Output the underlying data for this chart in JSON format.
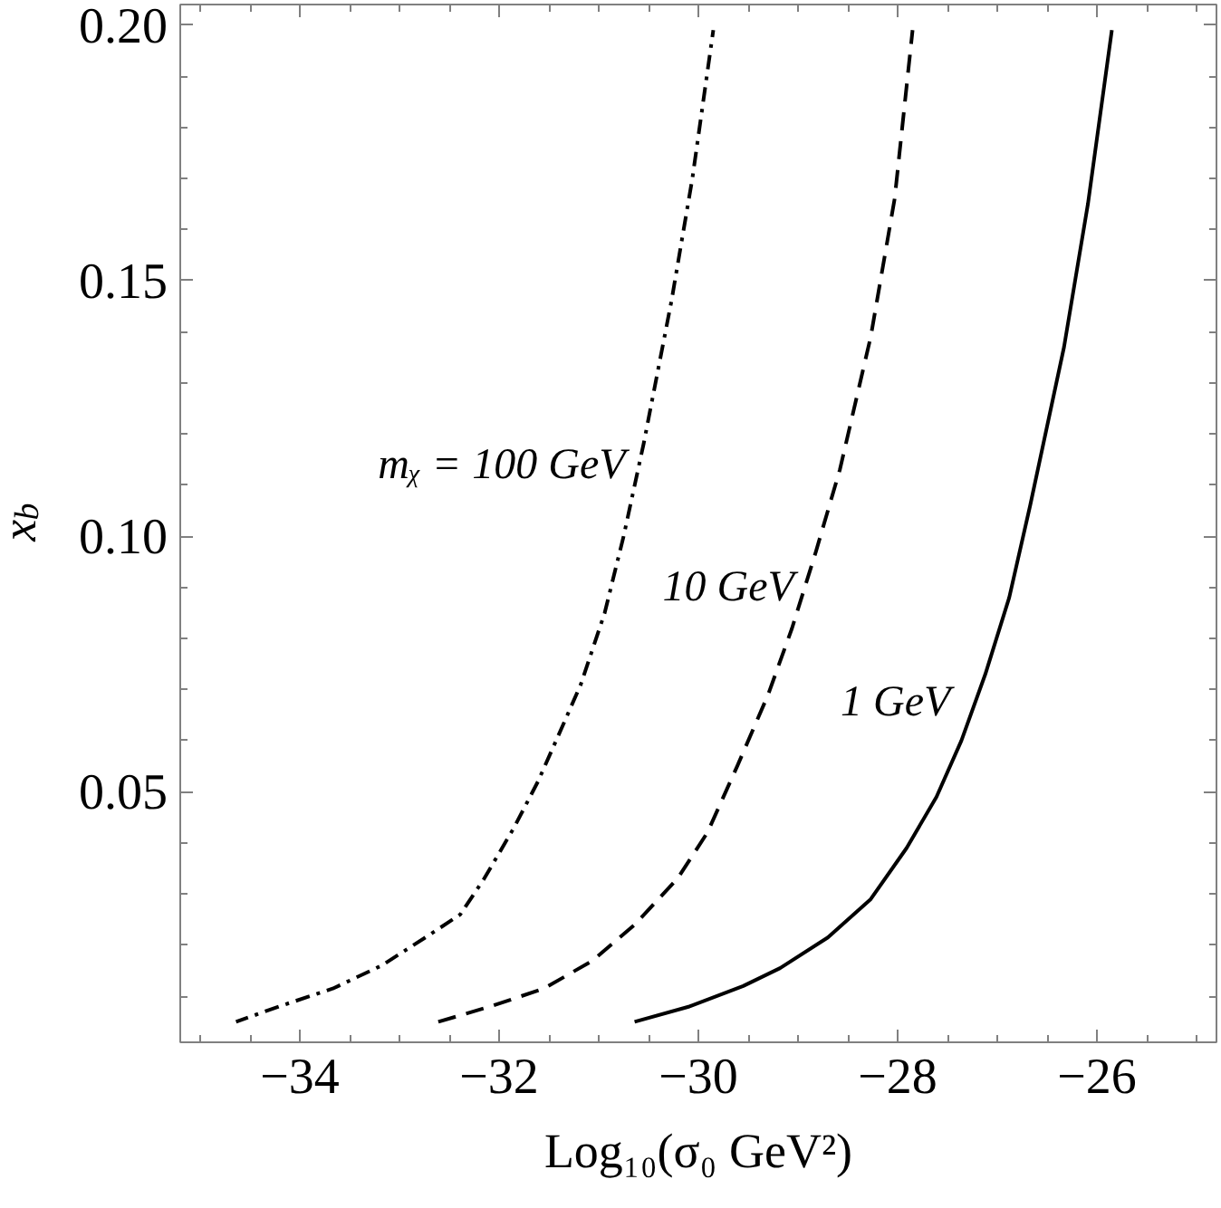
{
  "chart_data": {
    "type": "line",
    "xlabel": "Log₁₀(σ₀ GeV²)",
    "ylabel": "x$_{b}$",
    "xlim": [
      -35.2,
      -24.8
    ],
    "ylim": [
      0.001,
      0.204
    ],
    "xticks": [
      {
        "value": -35,
        "label": null
      },
      {
        "value": -34.5,
        "label": null
      },
      {
        "value": -34,
        "label": "−34"
      },
      {
        "value": -33.5,
        "label": null
      },
      {
        "value": -33,
        "label": null
      },
      {
        "value": -32.5,
        "label": null
      },
      {
        "value": -32,
        "label": "−32"
      },
      {
        "value": -31.5,
        "label": null
      },
      {
        "value": -31,
        "label": null
      },
      {
        "value": -30.5,
        "label": null
      },
      {
        "value": -30,
        "label": "−30"
      },
      {
        "value": -29.5,
        "label": null
      },
      {
        "value": -29,
        "label": null
      },
      {
        "value": -28.5,
        "label": null
      },
      {
        "value": -28,
        "label": "−28"
      },
      {
        "value": -27.5,
        "label": null
      },
      {
        "value": -27,
        "label": null
      },
      {
        "value": -26.5,
        "label": null
      },
      {
        "value": -26,
        "label": "−26"
      },
      {
        "value": -25.5,
        "label": null
      },
      {
        "value": -25,
        "label": null
      }
    ],
    "yticks": [
      {
        "value": 0.01,
        "label": null
      },
      {
        "value": 0.02,
        "label": null
      },
      {
        "value": 0.03,
        "label": null
      },
      {
        "value": 0.04,
        "label": null
      },
      {
        "value": 0.05,
        "label": "0.05"
      },
      {
        "value": 0.06,
        "label": null
      },
      {
        "value": 0.07,
        "label": null
      },
      {
        "value": 0.08,
        "label": null
      },
      {
        "value": 0.09,
        "label": null
      },
      {
        "value": 0.1,
        "label": "0.10"
      },
      {
        "value": 0.11,
        "label": null
      },
      {
        "value": 0.12,
        "label": null
      },
      {
        "value": 0.13,
        "label": null
      },
      {
        "value": 0.14,
        "label": null
      },
      {
        "value": 0.15,
        "label": "0.15"
      },
      {
        "value": 0.16,
        "label": null
      },
      {
        "value": 0.17,
        "label": null
      },
      {
        "value": 0.18,
        "label": null
      },
      {
        "value": 0.19,
        "label": null
      },
      {
        "value": 0.2,
        "label": "0.20"
      }
    ],
    "grid": false,
    "series": [
      {
        "name": "mᵪ = 100 GeV",
        "color": "#000000",
        "line_style": "dashdot",
        "x": [
          -34.64,
          -34.21,
          -33.67,
          -33.18,
          -32.7,
          -32.39,
          -32.15,
          -31.85,
          -31.61,
          -31.36,
          -31.18,
          -30.94,
          -30.75,
          -30.55,
          -30.27,
          -30.06,
          -29.85
        ],
        "values": [
          0.005,
          0.008,
          0.0115,
          0.016,
          0.022,
          0.026,
          0.033,
          0.043,
          0.052,
          0.063,
          0.071,
          0.085,
          0.1,
          0.118,
          0.146,
          0.17,
          0.199
        ]
      },
      {
        "name": "10 GeV",
        "color": "#000000",
        "line_style": "dashed",
        "x": [
          -32.61,
          -32.09,
          -31.55,
          -31.06,
          -30.64,
          -30.21,
          -29.91,
          -29.61,
          -29.3,
          -29.06,
          -28.82,
          -28.58,
          -28.27,
          -28.03,
          -27.85
        ],
        "values": [
          0.005,
          0.008,
          0.0115,
          0.017,
          0.024,
          0.033,
          0.042,
          0.055,
          0.069,
          0.082,
          0.097,
          0.113,
          0.139,
          0.166,
          0.199
        ]
      },
      {
        "name": "1 GeV",
        "color": "#000000",
        "line_style": "solid",
        "x": [
          -30.64,
          -30.09,
          -29.55,
          -29.18,
          -28.7,
          -28.27,
          -27.91,
          -27.61,
          -27.36,
          -27.12,
          -26.88,
          -26.67,
          -26.33,
          -26.09,
          -25.85
        ],
        "values": [
          0.005,
          0.008,
          0.012,
          0.0155,
          0.0215,
          0.029,
          0.039,
          0.049,
          0.06,
          0.073,
          0.088,
          0.106,
          0.137,
          0.165,
          0.199
        ]
      }
    ]
  }
}
